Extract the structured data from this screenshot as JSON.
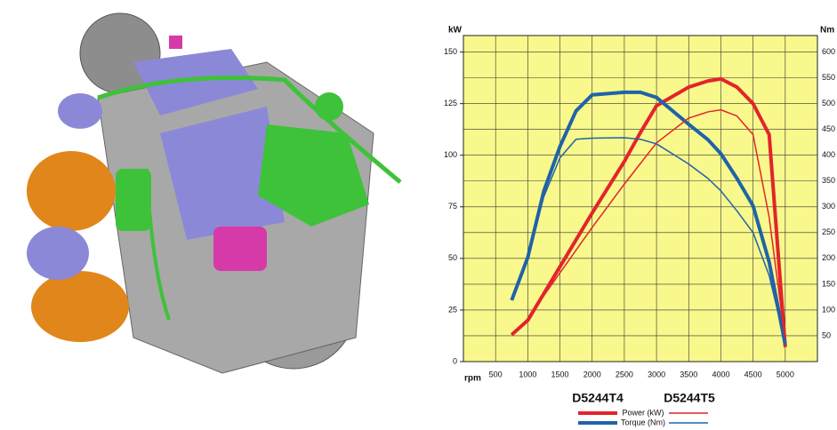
{
  "chart_data": {
    "type": "line",
    "x_label": "rpm",
    "y_label": "kW",
    "y2_label": "Nm",
    "x": [
      750,
      1000,
      1250,
      1500,
      1750,
      2000,
      2500,
      2750,
      3000,
      3500,
      3800,
      4000,
      4250,
      4500,
      4750,
      5000
    ],
    "xlim": [
      0,
      5500
    ],
    "xticks": [
      500,
      1000,
      1500,
      2000,
      2500,
      3000,
      3500,
      4000,
      4500,
      5000
    ],
    "ylim": [
      0,
      158
    ],
    "yticks": [
      0,
      25,
      50,
      75,
      100,
      125,
      150
    ],
    "y2lim": [
      0,
      632
    ],
    "y2ticks": [
      50,
      100,
      150,
      200,
      250,
      300,
      350,
      400,
      450,
      500,
      550,
      600
    ],
    "grid": true,
    "plot_color": "#f8f88c",
    "quantities": [
      {
        "name": "Power (kW)",
        "color": "#e3242b",
        "axis": "y"
      },
      {
        "name": "Torque (Nm)",
        "color": "#1f63a8",
        "axis": "y2"
      }
    ],
    "models": [
      {
        "name": "D5244T4",
        "line_width": 4,
        "values": [
          [
            13,
            20,
            33,
            46,
            59,
            72,
            97,
            111,
            124,
            133,
            136,
            137,
            133,
            125,
            110,
            7
          ],
          [
            119,
            202,
            331,
            417,
            486,
            517,
            522,
            522,
            512,
            460,
            430,
            403,
            355,
            302,
            193,
            33
          ]
        ]
      },
      {
        "name": "D5244T5",
        "line_width": 1.5,
        "values": [
          [
            13,
            20,
            32,
            43,
            54,
            65,
            86,
            96,
            106,
            118,
            121,
            122,
            119,
            110,
            70,
            10
          ],
          [
            119,
            202,
            320,
            395,
            431,
            433,
            434,
            431,
            422,
            383,
            355,
            331,
            292,
            250,
            167,
            36
          ]
        ]
      }
    ]
  }
}
